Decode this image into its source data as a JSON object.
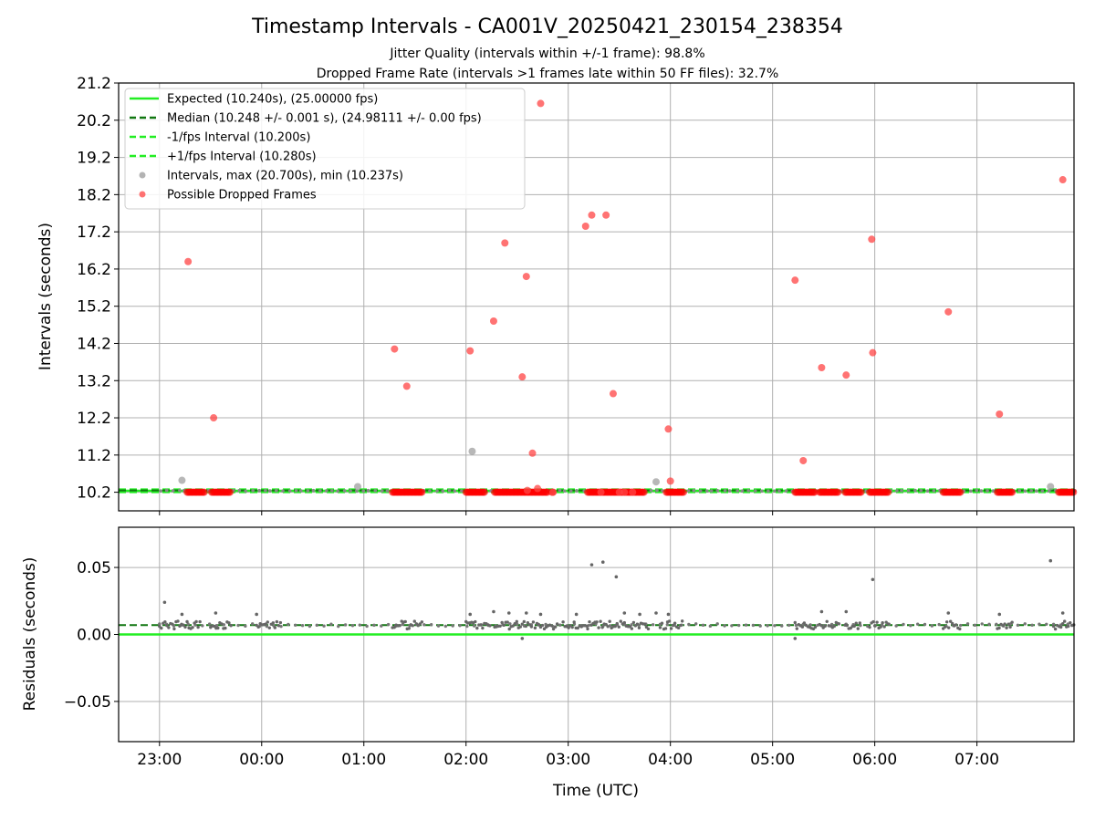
{
  "chart_data": [
    {
      "type": "scatter",
      "panel": "top",
      "title": "Timestamp Intervals - CA001V_20250421_230154_238354",
      "subtitle_1": "Jitter Quality (intervals within +/-1 frame): 98.8%",
      "subtitle_2": "Dropped Frame Rate (intervals >1 frames late within 50 FF files): 32.7%",
      "ylabel": "Intervals (seconds)",
      "xlabel": "",
      "ylim": [
        9.7,
        21.2
      ],
      "y_ticks": [
        "10.2",
        "11.2",
        "12.2",
        "13.2",
        "14.2",
        "15.2",
        "16.2",
        "17.2",
        "18.2",
        "19.2",
        "20.2",
        "21.2"
      ],
      "y_tick_values": [
        10.2,
        11.2,
        12.2,
        13.2,
        14.2,
        15.2,
        16.2,
        17.2,
        18.2,
        19.2,
        20.2,
        21.2
      ],
      "x_range_hours": [
        -0.4,
        8.95
      ],
      "x_ticks": [
        "23:00",
        "00:00",
        "01:00",
        "02:00",
        "03:00",
        "04:00",
        "05:00",
        "06:00",
        "07:00"
      ],
      "x_tick_hours": [
        0,
        1,
        2,
        3,
        4,
        5,
        6,
        7,
        8
      ],
      "grid": true,
      "legend_placement": "upper-left",
      "legend": [
        {
          "label": "Expected (10.240s), (25.00000 fps)",
          "style": "solid",
          "color": "#22ee22"
        },
        {
          "label": "Median (10.248 +/- 0.001 s), (24.98111 +/- 0.00 fps)",
          "style": "dashed",
          "color": "#117711"
        },
        {
          "label": "-1/fps Interval (10.200s)",
          "style": "dashed",
          "color": "#22ee22"
        },
        {
          "label": "+1/fps Interval (10.280s)",
          "style": "dashed",
          "color": "#22ee22"
        },
        {
          "label": "Intervals, max (20.700s), min (10.237s)",
          "style": "marker",
          "color": "#999999"
        },
        {
          "label": "Possible Dropped Frames",
          "style": "marker",
          "color": "#ff4444"
        }
      ],
      "lines": {
        "expected": 10.24,
        "median": 10.248,
        "minus_1fps": 10.2,
        "plus_1fps": 10.28
      },
      "series": [
        {
          "name": "Intervals, max (20.700s), min (10.237s)",
          "x_hours": [
            0.22,
            1.94,
            3.06,
            4.86,
            8.72
          ],
          "y": [
            10.52,
            10.35,
            11.3,
            10.48,
            10.35
          ]
        },
        {
          "name": "Possible Dropped Frames",
          "x_hours": [
            0.28,
            0.53,
            2.3,
            2.42,
            3.04,
            3.27,
            3.38,
            3.55,
            3.59,
            3.6,
            3.65,
            3.7,
            3.73,
            3.85,
            4.17,
            4.23,
            4.32,
            4.37,
            4.44,
            4.5,
            4.55,
            4.63,
            4.98,
            5.0,
            6.22,
            6.3,
            6.48,
            6.72,
            6.97,
            6.98,
            7.72,
            8.22,
            8.84
          ],
          "y": [
            16.4,
            12.2,
            14.05,
            13.05,
            14.0,
            14.8,
            16.9,
            13.3,
            16.0,
            10.25,
            11.25,
            10.3,
            20.65,
            10.2,
            17.35,
            17.65,
            10.2,
            17.65,
            12.85,
            10.2,
            10.2,
            10.2,
            11.9,
            10.5,
            15.9,
            11.05,
            13.55,
            13.35,
            17.0,
            13.95,
            15.05,
            12.3,
            18.6
          ],
          "dense_bands_hours": [
            [
              0.27,
              0.44
            ],
            [
              0.51,
              0.7
            ],
            [
              2.28,
              2.57
            ],
            [
              3.0,
              3.18
            ],
            [
              3.28,
              3.8
            ],
            [
              3.84,
              3.86
            ],
            [
              4.19,
              4.75
            ],
            [
              4.96,
              5.13
            ],
            [
              6.22,
              6.42
            ],
            [
              6.46,
              6.65
            ],
            [
              6.71,
              6.87
            ],
            [
              6.95,
              7.14
            ],
            [
              7.67,
              7.84
            ],
            [
              8.2,
              8.35
            ],
            [
              8.8,
              8.95
            ]
          ],
          "dense_band_y": 10.2
        }
      ]
    },
    {
      "type": "scatter",
      "panel": "bottom",
      "xlabel": "Time (UTC)",
      "ylabel": "Residuals (seconds)",
      "ylim": [
        -0.08,
        0.08
      ],
      "y_ticks": [
        "0.05",
        "0.00",
        "−0.05"
      ],
      "y_tick_values": [
        0.05,
        0.0,
        -0.05
      ],
      "x_range_hours": [
        -0.4,
        8.95
      ],
      "x_ticks": [
        "23:00",
        "00:00",
        "01:00",
        "02:00",
        "03:00",
        "04:00",
        "05:00",
        "06:00",
        "07:00"
      ],
      "x_tick_hours": [
        0,
        1,
        2,
        3,
        4,
        5,
        6,
        7,
        8
      ],
      "grid": true,
      "lines": {
        "expected": 0.0,
        "median": 0.007
      },
      "series": [
        {
          "name": "Residuals",
          "baseline": 0.007,
          "spread": 0.003,
          "dense_bands_hours": [
            [
              0.0,
              0.4
            ],
            [
              0.5,
              0.7
            ],
            [
              0.95,
              1.2
            ],
            [
              2.28,
              2.57
            ],
            [
              3.0,
              3.25
            ],
            [
              3.28,
              3.9
            ],
            [
              3.95,
              4.2
            ],
            [
              4.19,
              4.8
            ],
            [
              4.9,
              5.13
            ],
            [
              6.22,
              6.42
            ],
            [
              6.46,
              6.65
            ],
            [
              6.71,
              6.87
            ],
            [
              6.95,
              7.14
            ],
            [
              7.67,
              7.84
            ],
            [
              8.2,
              8.35
            ],
            [
              8.75,
              8.95
            ]
          ],
          "outliers_x_hours": [
            0.05,
            0.22,
            0.55,
            0.95,
            3.04,
            3.27,
            3.42,
            3.55,
            3.59,
            3.73,
            4.08,
            4.23,
            4.34,
            4.47,
            4.55,
            4.7,
            4.86,
            4.98,
            6.22,
            6.48,
            6.72,
            6.98,
            7.72,
            8.22,
            8.72,
            8.84
          ],
          "outliers_y": [
            0.024,
            0.015,
            0.016,
            0.015,
            0.015,
            0.017,
            0.016,
            -0.003,
            0.016,
            0.015,
            0.015,
            0.052,
            0.054,
            0.043,
            0.016,
            0.015,
            0.016,
            0.015,
            -0.003,
            0.017,
            0.017,
            0.041,
            0.016,
            0.015,
            0.055,
            0.016
          ]
        }
      ]
    }
  ]
}
